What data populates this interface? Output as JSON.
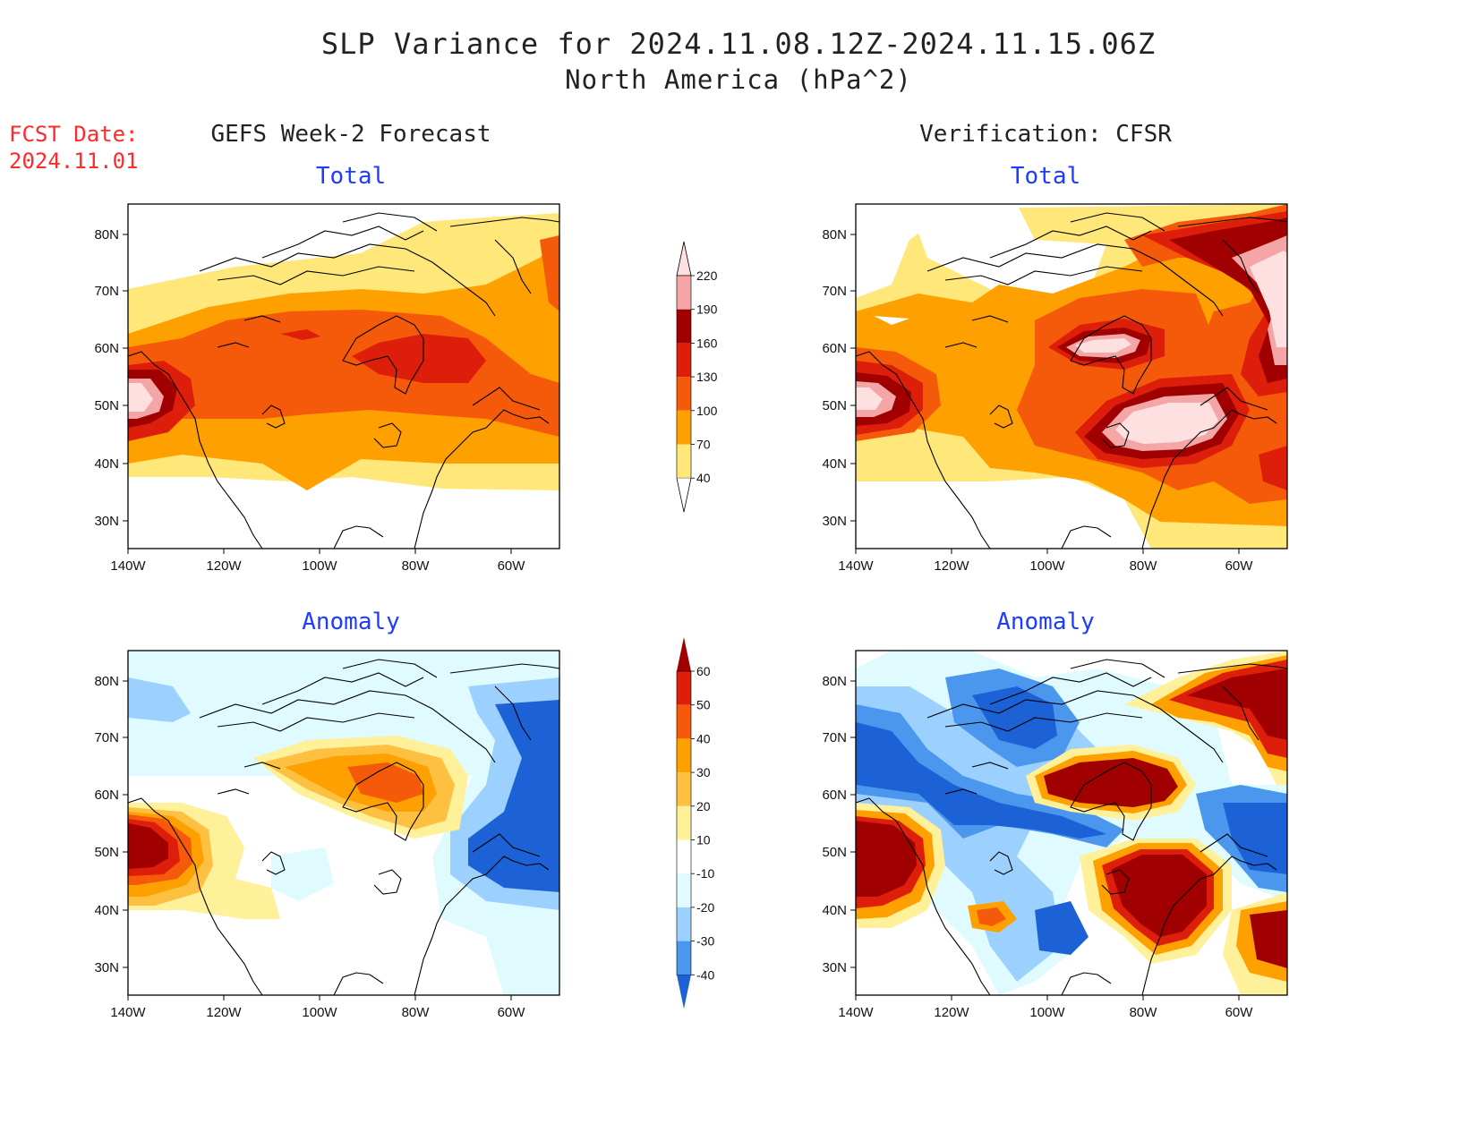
{
  "header": {
    "title": "SLP Variance for 2024.11.08.12Z-2024.11.15.06Z",
    "subtitle": "North America (hPa^2)",
    "fcst_label": "FCST Date:",
    "fcst_date": "2024.11.01"
  },
  "columns": {
    "left": "GEFS Week-2 Forecast",
    "right": "Verification: CFSR"
  },
  "panels": {
    "total_left": "Total",
    "total_right": "Total",
    "anom_left": "Anomaly",
    "anom_right": "Anomaly"
  },
  "axes": {
    "lat_labels": [
      "80N",
      "70N",
      "60N",
      "50N",
      "40N",
      "30N"
    ],
    "lon_labels": [
      "140W",
      "120W",
      "100W",
      "80W",
      "60W"
    ]
  },
  "colorbar_total": {
    "labels": [
      "220",
      "190",
      "160",
      "130",
      "100",
      "70",
      "40"
    ],
    "colors": [
      "#ffe0e0",
      "#f4a6a6",
      "#a00000",
      "#dc1e0a",
      "#f55a0a",
      "#fea000",
      "#ffe77a"
    ]
  },
  "colorbar_anomaly": {
    "labels": [
      "60",
      "50",
      "40",
      "30",
      "20",
      "10",
      "-10",
      "-20",
      "-30",
      "-40"
    ],
    "colors": [
      "#a00000",
      "#dc1e0a",
      "#f55a0a",
      "#fea000",
      "#fdc040",
      "#fff09a",
      "#ffffff",
      "#e0fbff",
      "#9cd0ff",
      "#4b97ee",
      "#1c62d6"
    ]
  }
}
